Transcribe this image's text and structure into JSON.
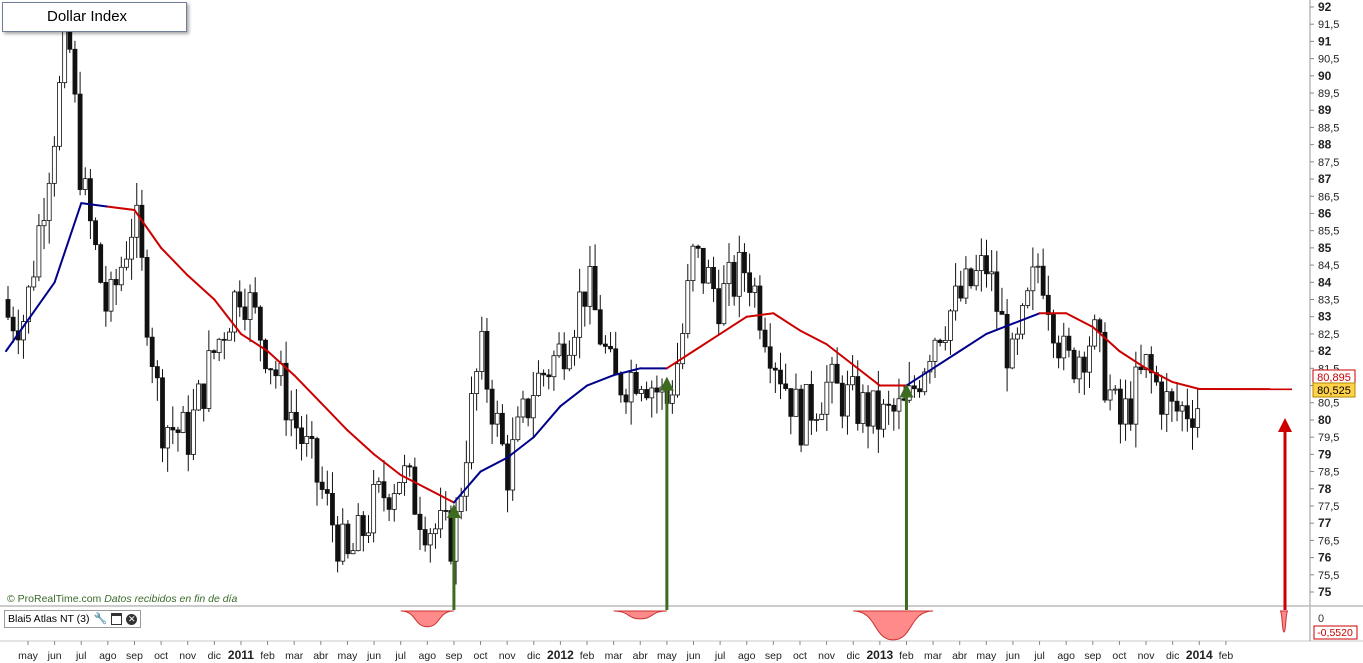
{
  "title": "Dollar Index",
  "watermark": {
    "brand": "© ProRealTime.com",
    "source": "Datos recibidos en fin de día"
  },
  "indicator": {
    "label": "Blai5 Atlas NT (3)",
    "icons": [
      "wrench-icon",
      "window-icon",
      "close-icon"
    ]
  },
  "price_labels": {
    "ma_value": "80,895",
    "last_close": "80,525"
  },
  "indicator_labels": {
    "zero": "0",
    "min": "-0,5520"
  },
  "colors": {
    "ma_red": "#cc0000",
    "ma_blue": "#00008b",
    "arrow_green": "#3d6b1f",
    "arrow_red": "#cc0000",
    "last_close_bg": "#ffd24a",
    "indicator_fill": "#ff8a8a"
  },
  "chart_data": {
    "type": "candlestick",
    "title": "Dollar Index",
    "ylim": [
      74.6,
      92.1
    ],
    "y_ticks": [
      "75",
      "75,5",
      "76",
      "76,5",
      "77",
      "77,5",
      "78",
      "78,5",
      "79",
      "79,5",
      "80",
      "80,5",
      "81",
      "81,5",
      "82",
      "82,5",
      "83",
      "83,5",
      "84",
      "84,5",
      "85",
      "85,5",
      "86",
      "86,5",
      "87",
      "87,5",
      "88",
      "88,5",
      "89",
      "89,5",
      "90",
      "90,5",
      "91",
      "91,5",
      "92"
    ],
    "x_ticks": [
      "may",
      "jun",
      "jul",
      "ago",
      "sep",
      "oct",
      "nov",
      "dic",
      "2011",
      "feb",
      "mar",
      "abr",
      "may",
      "jun",
      "jul",
      "ago",
      "sep",
      "oct",
      "nov",
      "dic",
      "2012",
      "feb",
      "mar",
      "abr",
      "may",
      "jun",
      "jul",
      "ago",
      "sep",
      "oct",
      "nov",
      "dic",
      "2013",
      "feb",
      "mar",
      "abr",
      "may",
      "jun",
      "jul",
      "ago",
      "sep",
      "oct",
      "nov",
      "dic",
      "2014",
      "feb"
    ],
    "close_path": [
      [
        "may 2010",
        83.5
      ],
      [
        "jun 2010",
        88.5
      ],
      [
        "jun 2010",
        91.3
      ],
      [
        "jul 2010",
        87.0
      ],
      [
        "ago 2010",
        83.0
      ],
      [
        "sep 2010",
        86.0
      ],
      [
        "oct 2010",
        80.0
      ],
      [
        "nov 2010",
        79.5
      ],
      [
        "dic 2010",
        82.0
      ],
      [
        "2011",
        84.0
      ],
      [
        "feb 2011",
        82.0
      ],
      [
        "mar 2011",
        80.0
      ],
      [
        "abr 2011",
        78.0
      ],
      [
        "may 2011",
        75.8
      ],
      [
        "jun 2011",
        77.5
      ],
      [
        "jul 2011",
        78.5
      ],
      [
        "ago 2011",
        77.0
      ],
      [
        "sep 2011",
        76.5
      ],
      [
        "sep 2011",
        79.5
      ],
      [
        "oct 2011",
        82.0
      ],
      [
        "nov 2011",
        78.5
      ],
      [
        "dic 2011",
        81.0
      ],
      [
        "2012",
        82.0
      ],
      [
        "feb 2012",
        84.0
      ],
      [
        "mar 2012",
        81.0
      ],
      [
        "abr 2012",
        81.5
      ],
      [
        "may 2012",
        80.5
      ],
      [
        "may 2012",
        82.0
      ],
      [
        "jun 2012",
        84.8
      ],
      [
        "jul 2012",
        83.5
      ],
      [
        "ago 2012",
        84.5
      ],
      [
        "sep 2012",
        82.0
      ],
      [
        "oct 2012",
        80.0
      ],
      [
        "nov 2012",
        81.0
      ],
      [
        "dic 2012",
        80.5
      ],
      [
        "2013",
        80.0
      ],
      [
        "feb 2013",
        80.3
      ],
      [
        "mar 2013",
        82.5
      ],
      [
        "abr 2013",
        83.5
      ],
      [
        "may 2013",
        84.5
      ],
      [
        "jun 2013",
        81.5
      ],
      [
        "jul 2013",
        84.7
      ],
      [
        "ago 2013",
        81.5
      ],
      [
        "sep 2013",
        82.5
      ],
      [
        "oct 2013",
        79.8
      ],
      [
        "nov 2013",
        81.5
      ],
      [
        "dic 2013",
        80.2
      ],
      [
        "2014",
        80.5
      ]
    ],
    "moving_average": [
      [
        "may 2010",
        82.0
      ],
      [
        "jun 2010",
        84.0
      ],
      [
        "jul 2010",
        86.3
      ],
      [
        "ago 2010",
        86.2
      ],
      [
        "sep 2010",
        86.1
      ],
      [
        "oct 2010",
        85.0
      ],
      [
        "nov 2010",
        84.2
      ],
      [
        "dic 2010",
        83.5
      ],
      [
        "2011",
        82.5
      ],
      [
        "feb 2011",
        82.0
      ],
      [
        "mar 2011",
        81.3
      ],
      [
        "abr 2011",
        80.5
      ],
      [
        "may 2011",
        79.7
      ],
      [
        "jun 2011",
        79.0
      ],
      [
        "jul 2011",
        78.4
      ],
      [
        "ago 2011",
        78.0
      ],
      [
        "sep 2011",
        77.6
      ],
      [
        "oct 2011",
        78.5
      ],
      [
        "nov 2011",
        78.9
      ],
      [
        "dic 2011",
        79.5
      ],
      [
        "2012",
        80.4
      ],
      [
        "feb 2012",
        81.0
      ],
      [
        "mar 2012",
        81.3
      ],
      [
        "abr 2012",
        81.5
      ],
      [
        "may 2012",
        81.5
      ],
      [
        "jun 2012",
        82.0
      ],
      [
        "jul 2012",
        82.5
      ],
      [
        "ago 2012",
        83.0
      ],
      [
        "sep 2012",
        83.1
      ],
      [
        "oct 2012",
        82.6
      ],
      [
        "nov 2012",
        82.2
      ],
      [
        "dic 2012",
        81.6
      ],
      [
        "2013",
        81.0
      ],
      [
        "feb 2013",
        81.0
      ],
      [
        "mar 2013",
        81.5
      ],
      [
        "abr 2013",
        82.0
      ],
      [
        "may 2013",
        82.5
      ],
      [
        "jun 2013",
        82.8
      ],
      [
        "jul 2013",
        83.1
      ],
      [
        "ago 2013",
        83.1
      ],
      [
        "sep 2013",
        82.7
      ],
      [
        "oct 2013",
        82.0
      ],
      [
        "nov 2013",
        81.5
      ],
      [
        "dic 2013",
        81.1
      ],
      [
        "2014",
        80.9
      ]
    ],
    "ma_blue_segments": [
      [
        "may 2010",
        "ago 2010"
      ],
      [
        "sep 2011",
        "may 2012"
      ],
      [
        "feb 2013",
        "jul 2013"
      ]
    ],
    "arrows": [
      {
        "x": "sep 2011",
        "y_tip": 77.5,
        "color": "green"
      },
      {
        "x": "may 2012",
        "y_tip": 81.2,
        "color": "green"
      },
      {
        "x": "feb 2013",
        "y_tip": 81.0,
        "color": "green"
      },
      {
        "x": "2014",
        "y_tip": 80.0,
        "color": "red"
      }
    ],
    "indicator_dips": [
      {
        "from": "jul 2011",
        "to": "sep 2011",
        "min": -0.3
      },
      {
        "from": "mar 2012",
        "to": "may 2012",
        "min": -0.15
      },
      {
        "from": "dic 2012",
        "to": "mar 2013",
        "min": -0.55
      },
      {
        "from": "2014",
        "to": "2014",
        "min": -0.4
      }
    ]
  }
}
